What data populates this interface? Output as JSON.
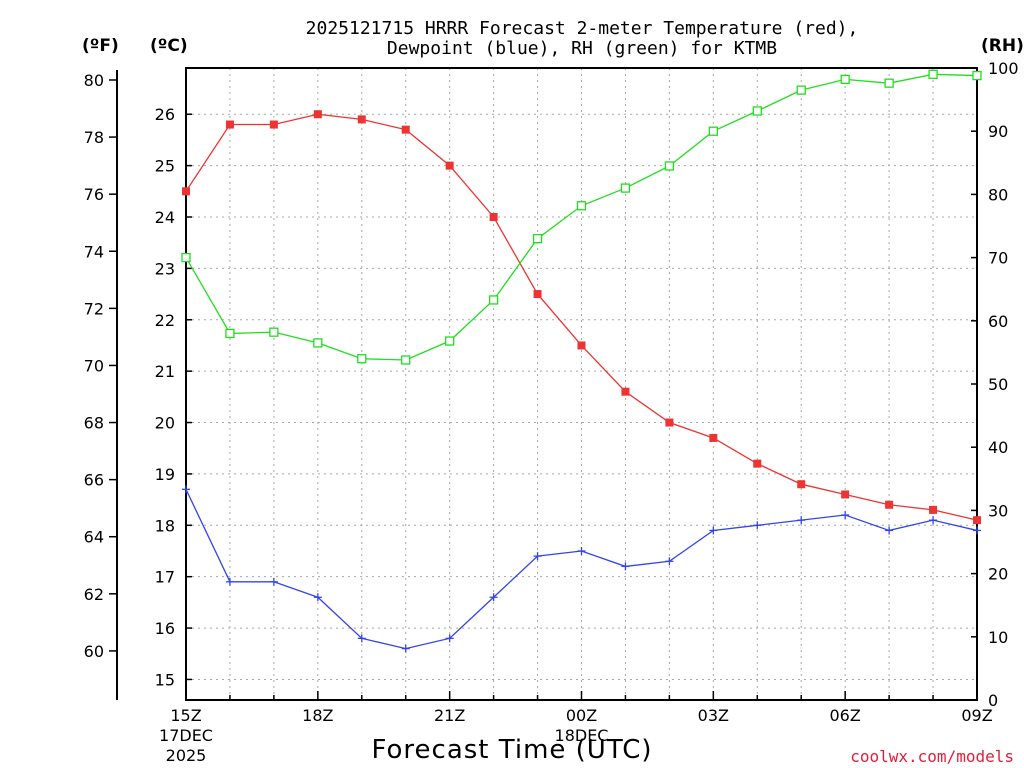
{
  "chart_data": {
    "type": "line",
    "title_line1": "2025121715 HRRR Forecast 2-meter Temperature (red),",
    "title_line2": "Dewpoint (blue), RH (green) for KTMB",
    "unit_f": "(ºF)",
    "unit_c": "(ºC)",
    "unit_rh": "(RH)",
    "xlabel": "Forecast Time (UTC)",
    "credit": "coolwx.com/models",
    "x_ticks": [
      {
        "hour": 0,
        "label": "15Z",
        "sub1": "17DEC",
        "sub2": "2025"
      },
      {
        "hour": 3,
        "label": "18Z",
        "sub1": "",
        "sub2": ""
      },
      {
        "hour": 6,
        "label": "21Z",
        "sub1": "",
        "sub2": ""
      },
      {
        "hour": 9,
        "label": "00Z",
        "sub1": "18DEC",
        "sub2": ""
      },
      {
        "hour": 12,
        "label": "03Z",
        "sub1": "",
        "sub2": ""
      },
      {
        "hour": 15,
        "label": "06Z",
        "sub1": "",
        "sub2": ""
      },
      {
        "hour": 18,
        "label": "09Z",
        "sub1": "",
        "sub2": ""
      }
    ],
    "xlim": [
      0,
      18
    ],
    "celsius_axis": {
      "range": [
        14.6,
        26.9
      ],
      "ticks": [
        15,
        16,
        17,
        18,
        19,
        20,
        21,
        22,
        23,
        24,
        25,
        26
      ]
    },
    "fahrenheit_ticks": [
      60,
      62,
      64,
      66,
      68,
      70,
      72,
      74,
      76,
      78,
      80
    ],
    "rh_axis": {
      "range": [
        0,
        100
      ],
      "ticks": [
        0,
        10,
        20,
        30,
        40,
        50,
        60,
        70,
        80,
        90,
        100
      ]
    },
    "series": [
      {
        "name": "Temperature",
        "axis": "C",
        "color": "#ee3333",
        "marker": "filled-square",
        "values": [
          24.5,
          25.8,
          25.8,
          26.0,
          25.9,
          25.7,
          25.0,
          24.0,
          22.5,
          21.5,
          20.6,
          20.0,
          19.7,
          19.2,
          18.8,
          18.6,
          18.4,
          18.3,
          18.1
        ]
      },
      {
        "name": "Dewpoint",
        "axis": "C",
        "color": "#3344ee",
        "marker": "plus",
        "values": [
          18.7,
          16.9,
          16.9,
          16.6,
          15.8,
          15.6,
          15.8,
          16.6,
          17.4,
          17.5,
          17.2,
          17.3,
          17.9,
          18.0,
          18.1,
          18.2,
          17.9,
          18.1,
          17.9
        ]
      },
      {
        "name": "RH",
        "axis": "RH",
        "color": "#22dd22",
        "marker": "open-square",
        "values": [
          70.0,
          58.0,
          58.2,
          56.5,
          54.0,
          53.8,
          56.8,
          63.3,
          73.0,
          78.2,
          81.0,
          84.5,
          90.0,
          93.2,
          96.5,
          98.2,
          97.6,
          99.0,
          98.8
        ]
      }
    ]
  }
}
